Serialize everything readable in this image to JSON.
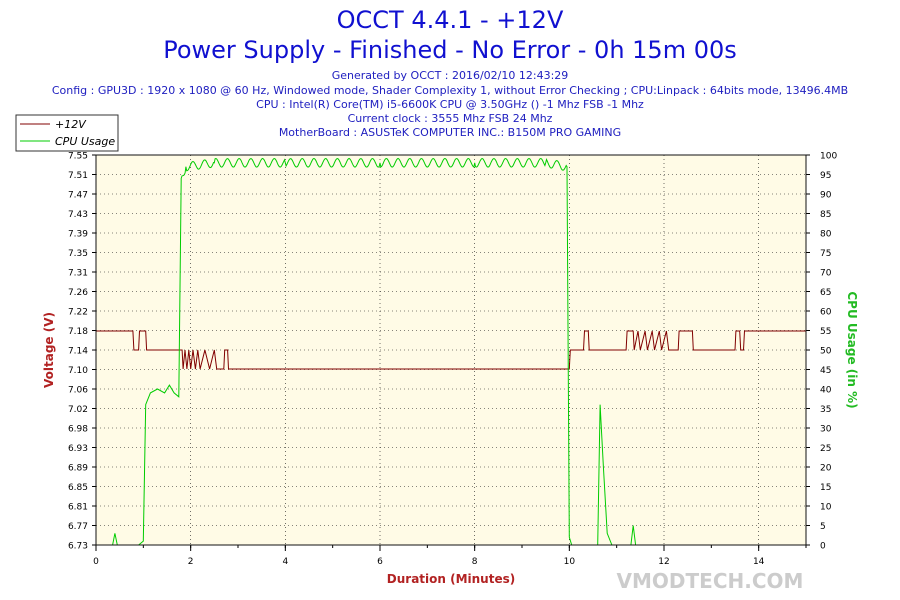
{
  "header": {
    "title": "OCCT 4.4.1 - +12V",
    "subtitle": "Power Supply - Finished - No Error - 0h 15m 00s",
    "info_lines": [
      "Generated by OCCT : 2016/02/10 12:43:29",
      "Config : GPU3D : 1920 x 1080 @ 60 Hz, Windowed mode, Shader Complexity 1, without Error Checking ; CPU:Linpack : 64bits mode, 13496.4MB",
      "CPU : Intel(R) Core(TM) i5-6600K CPU @ 3.50GHz () -1 Mhz FSB -1 Mhz",
      "Current clock : 3555 Mhz FSB 24 Mhz",
      "MotherBoard : ASUSTeK COMPUTER INC.: B150M PRO GAMING"
    ]
  },
  "watermark": "VMODTECH.COM",
  "colors": {
    "voltage": "#800000",
    "cpu": "#00cc00",
    "plot_bg": "#fffbe6",
    "grid": "#111111",
    "title": "#1010d0"
  },
  "chart_data": {
    "type": "line",
    "xlabel": "Duration (Minutes)",
    "ylabel_left": "Voltage (V)",
    "ylabel_right": "CPU Usage (in %)",
    "xlim": [
      0,
      15
    ],
    "ylim_left": [
      6.73,
      7.55
    ],
    "ylim_right": [
      0,
      100
    ],
    "x_ticks": [
      "0",
      "2",
      "4",
      "6",
      "8",
      "10",
      "12",
      "14"
    ],
    "y_left_ticks": [
      "6.73",
      "6.77",
      "6.81",
      "6.85",
      "6.89",
      "6.93",
      "6.98",
      "7.02",
      "7.06",
      "7.10",
      "7.14",
      "7.18",
      "7.22",
      "7.26",
      "7.31",
      "7.35",
      "7.39",
      "7.43",
      "7.47",
      "7.51",
      "7.55"
    ],
    "y_right_ticks": [
      "0",
      "5",
      "10",
      "15",
      "20",
      "25",
      "30",
      "35",
      "40",
      "45",
      "50",
      "55",
      "60",
      "65",
      "70",
      "75",
      "80",
      "85",
      "90",
      "95",
      "100"
    ],
    "grid": true,
    "legend_position": "top-left",
    "series": [
      {
        "name": "+12V",
        "axis": "left",
        "points": [
          [
            0,
            7.18
          ],
          [
            0.78,
            7.18
          ],
          [
            0.8,
            7.14
          ],
          [
            0.9,
            7.14
          ],
          [
            0.92,
            7.18
          ],
          [
            1.05,
            7.18
          ],
          [
            1.07,
            7.14
          ],
          [
            1.82,
            7.14
          ],
          [
            1.84,
            7.1
          ],
          [
            1.88,
            7.14
          ],
          [
            1.92,
            7.1
          ],
          [
            1.96,
            7.14
          ],
          [
            2.0,
            7.1
          ],
          [
            2.05,
            7.14
          ],
          [
            2.1,
            7.1
          ],
          [
            2.15,
            7.14
          ],
          [
            2.2,
            7.1
          ],
          [
            2.3,
            7.14
          ],
          [
            2.4,
            7.1
          ],
          [
            2.5,
            7.14
          ],
          [
            2.55,
            7.1
          ],
          [
            2.7,
            7.1
          ],
          [
            2.72,
            7.14
          ],
          [
            2.78,
            7.14
          ],
          [
            2.8,
            7.1
          ],
          [
            10.0,
            7.1
          ],
          [
            10.02,
            7.14
          ],
          [
            10.3,
            7.14
          ],
          [
            10.32,
            7.18
          ],
          [
            10.4,
            7.18
          ],
          [
            10.42,
            7.14
          ],
          [
            11.2,
            7.14
          ],
          [
            11.22,
            7.18
          ],
          [
            11.35,
            7.18
          ],
          [
            11.37,
            7.14
          ],
          [
            11.45,
            7.18
          ],
          [
            11.5,
            7.14
          ],
          [
            11.6,
            7.18
          ],
          [
            11.65,
            7.14
          ],
          [
            11.75,
            7.18
          ],
          [
            11.8,
            7.14
          ],
          [
            11.9,
            7.18
          ],
          [
            11.95,
            7.14
          ],
          [
            12.05,
            7.18
          ],
          [
            12.1,
            7.14
          ],
          [
            12.3,
            7.14
          ],
          [
            12.32,
            7.18
          ],
          [
            12.6,
            7.18
          ],
          [
            12.62,
            7.14
          ],
          [
            13.5,
            7.14
          ],
          [
            13.52,
            7.18
          ],
          [
            13.6,
            7.18
          ],
          [
            13.62,
            7.14
          ],
          [
            13.68,
            7.14
          ],
          [
            13.7,
            7.18
          ],
          [
            15,
            7.18
          ]
        ]
      },
      {
        "name": "CPU Usage",
        "axis": "right",
        "points": [
          [
            0,
            0
          ],
          [
            0.35,
            0
          ],
          [
            0.4,
            3
          ],
          [
            0.45,
            0
          ],
          [
            0.9,
            0
          ],
          [
            1.0,
            1
          ],
          [
            1.05,
            36
          ],
          [
            1.15,
            39
          ],
          [
            1.3,
            40
          ],
          [
            1.45,
            39
          ],
          [
            1.55,
            41
          ],
          [
            1.65,
            39
          ],
          [
            1.75,
            38
          ],
          [
            1.8,
            94
          ],
          [
            1.9,
            97
          ],
          [
            2.5,
            98
          ],
          [
            4.0,
            98
          ],
          [
            6.0,
            98
          ],
          [
            8.0,
            98
          ],
          [
            9.5,
            98
          ],
          [
            9.95,
            97
          ],
          [
            10.0,
            2
          ],
          [
            10.05,
            0
          ],
          [
            10.6,
            0
          ],
          [
            10.65,
            36
          ],
          [
            10.72,
            20
          ],
          [
            10.8,
            3
          ],
          [
            10.9,
            0
          ],
          [
            11.3,
            0
          ],
          [
            11.35,
            5
          ],
          [
            11.4,
            0
          ],
          [
            15,
            0
          ]
        ]
      }
    ]
  }
}
